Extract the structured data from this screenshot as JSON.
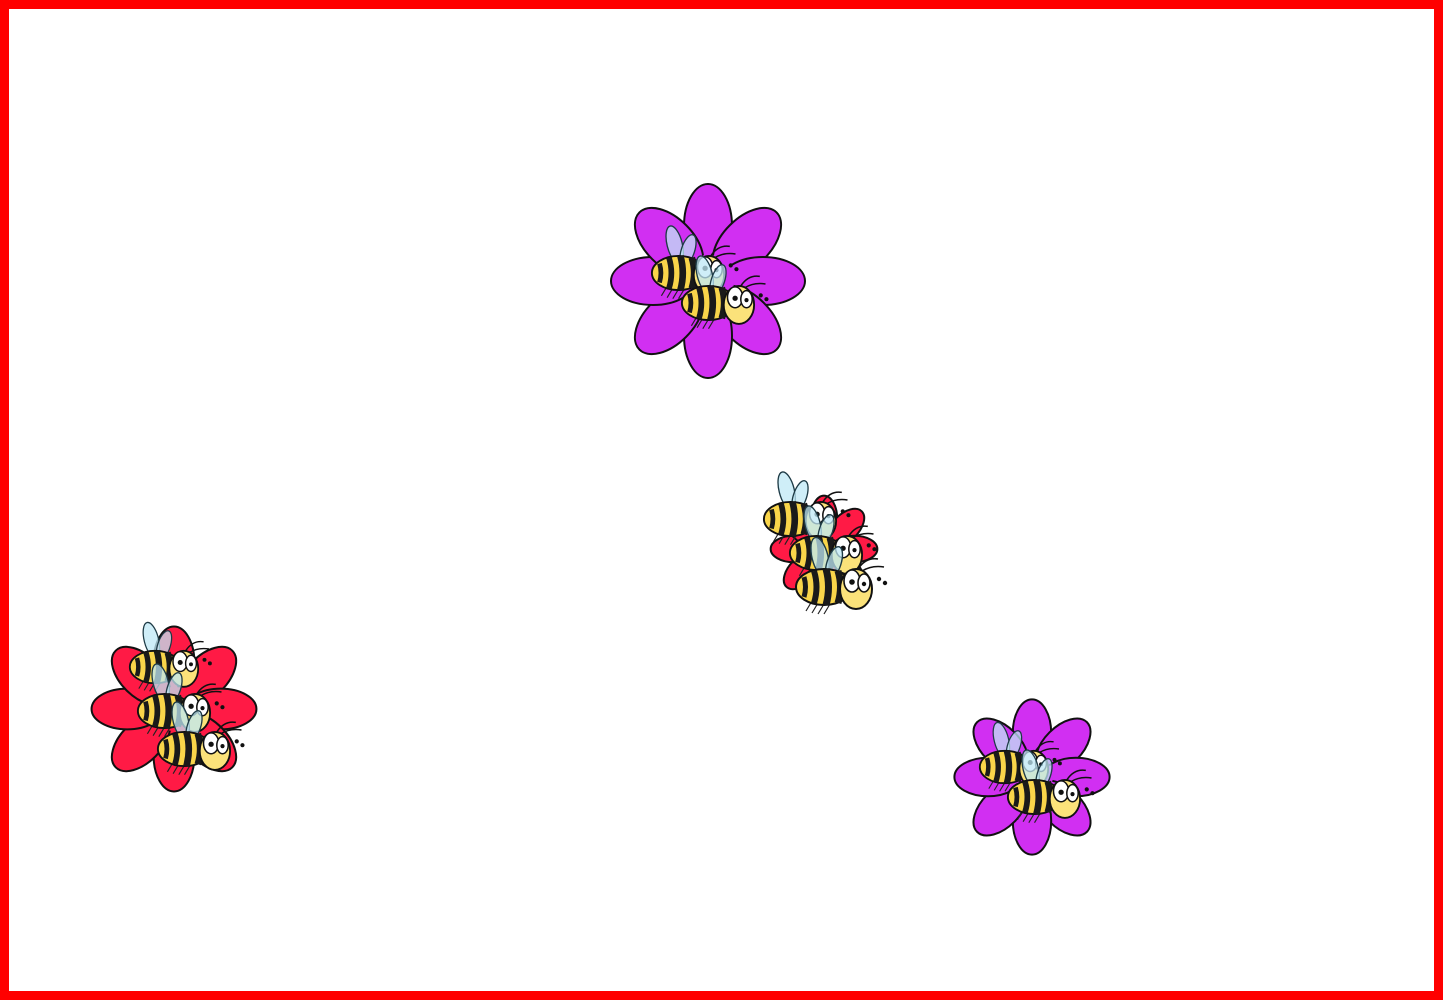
{
  "game": {
    "border_color": "#ff0000",
    "background_color": "#ffffff"
  },
  "palette": {
    "purple_petal": "#d12ff2",
    "red_petal": "#ff1a45",
    "bee_yellow": "#f9d54a",
    "bee_black": "#1a1a1a",
    "bee_face": "#fbe27a",
    "wing_fill": "#bfe8f5",
    "outline": "#111111"
  },
  "flowers": [
    {
      "id": "flower-top",
      "color": "purple",
      "bee_count": 2
    },
    {
      "id": "flower-center",
      "color": "red",
      "bee_count": 3
    },
    {
      "id": "flower-left",
      "color": "red",
      "bee_count": 3
    },
    {
      "id": "flower-bottom-right",
      "color": "purple",
      "bee_count": 2
    }
  ]
}
